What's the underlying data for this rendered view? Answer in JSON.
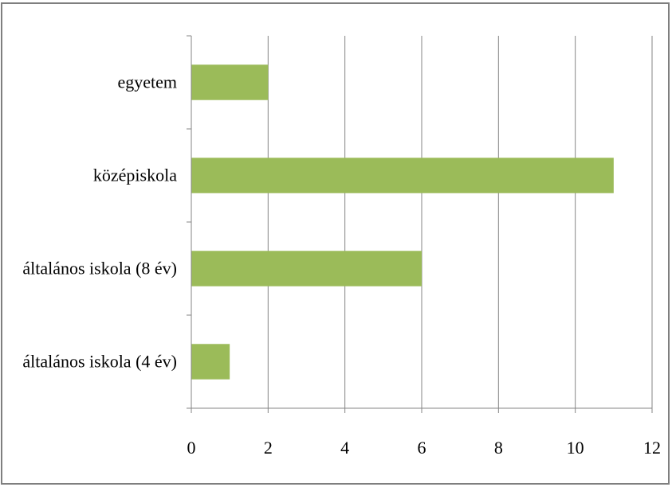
{
  "chart_data": {
    "type": "bar",
    "orientation": "horizontal",
    "categories": [
      "egyetem",
      "középiskola",
      "általános iskola (8 év)",
      "általános iskola (4 év)"
    ],
    "values": [
      2,
      11,
      6,
      1
    ],
    "title": "",
    "xlabel": "",
    "ylabel": "",
    "xlim": [
      0,
      12
    ],
    "x_ticks": [
      "0",
      "2",
      "4",
      "6",
      "8",
      "10",
      "12"
    ],
    "grid": "vertical",
    "legend": "none",
    "bar_color": "#9bbb59",
    "grid_color": "#868686"
  }
}
